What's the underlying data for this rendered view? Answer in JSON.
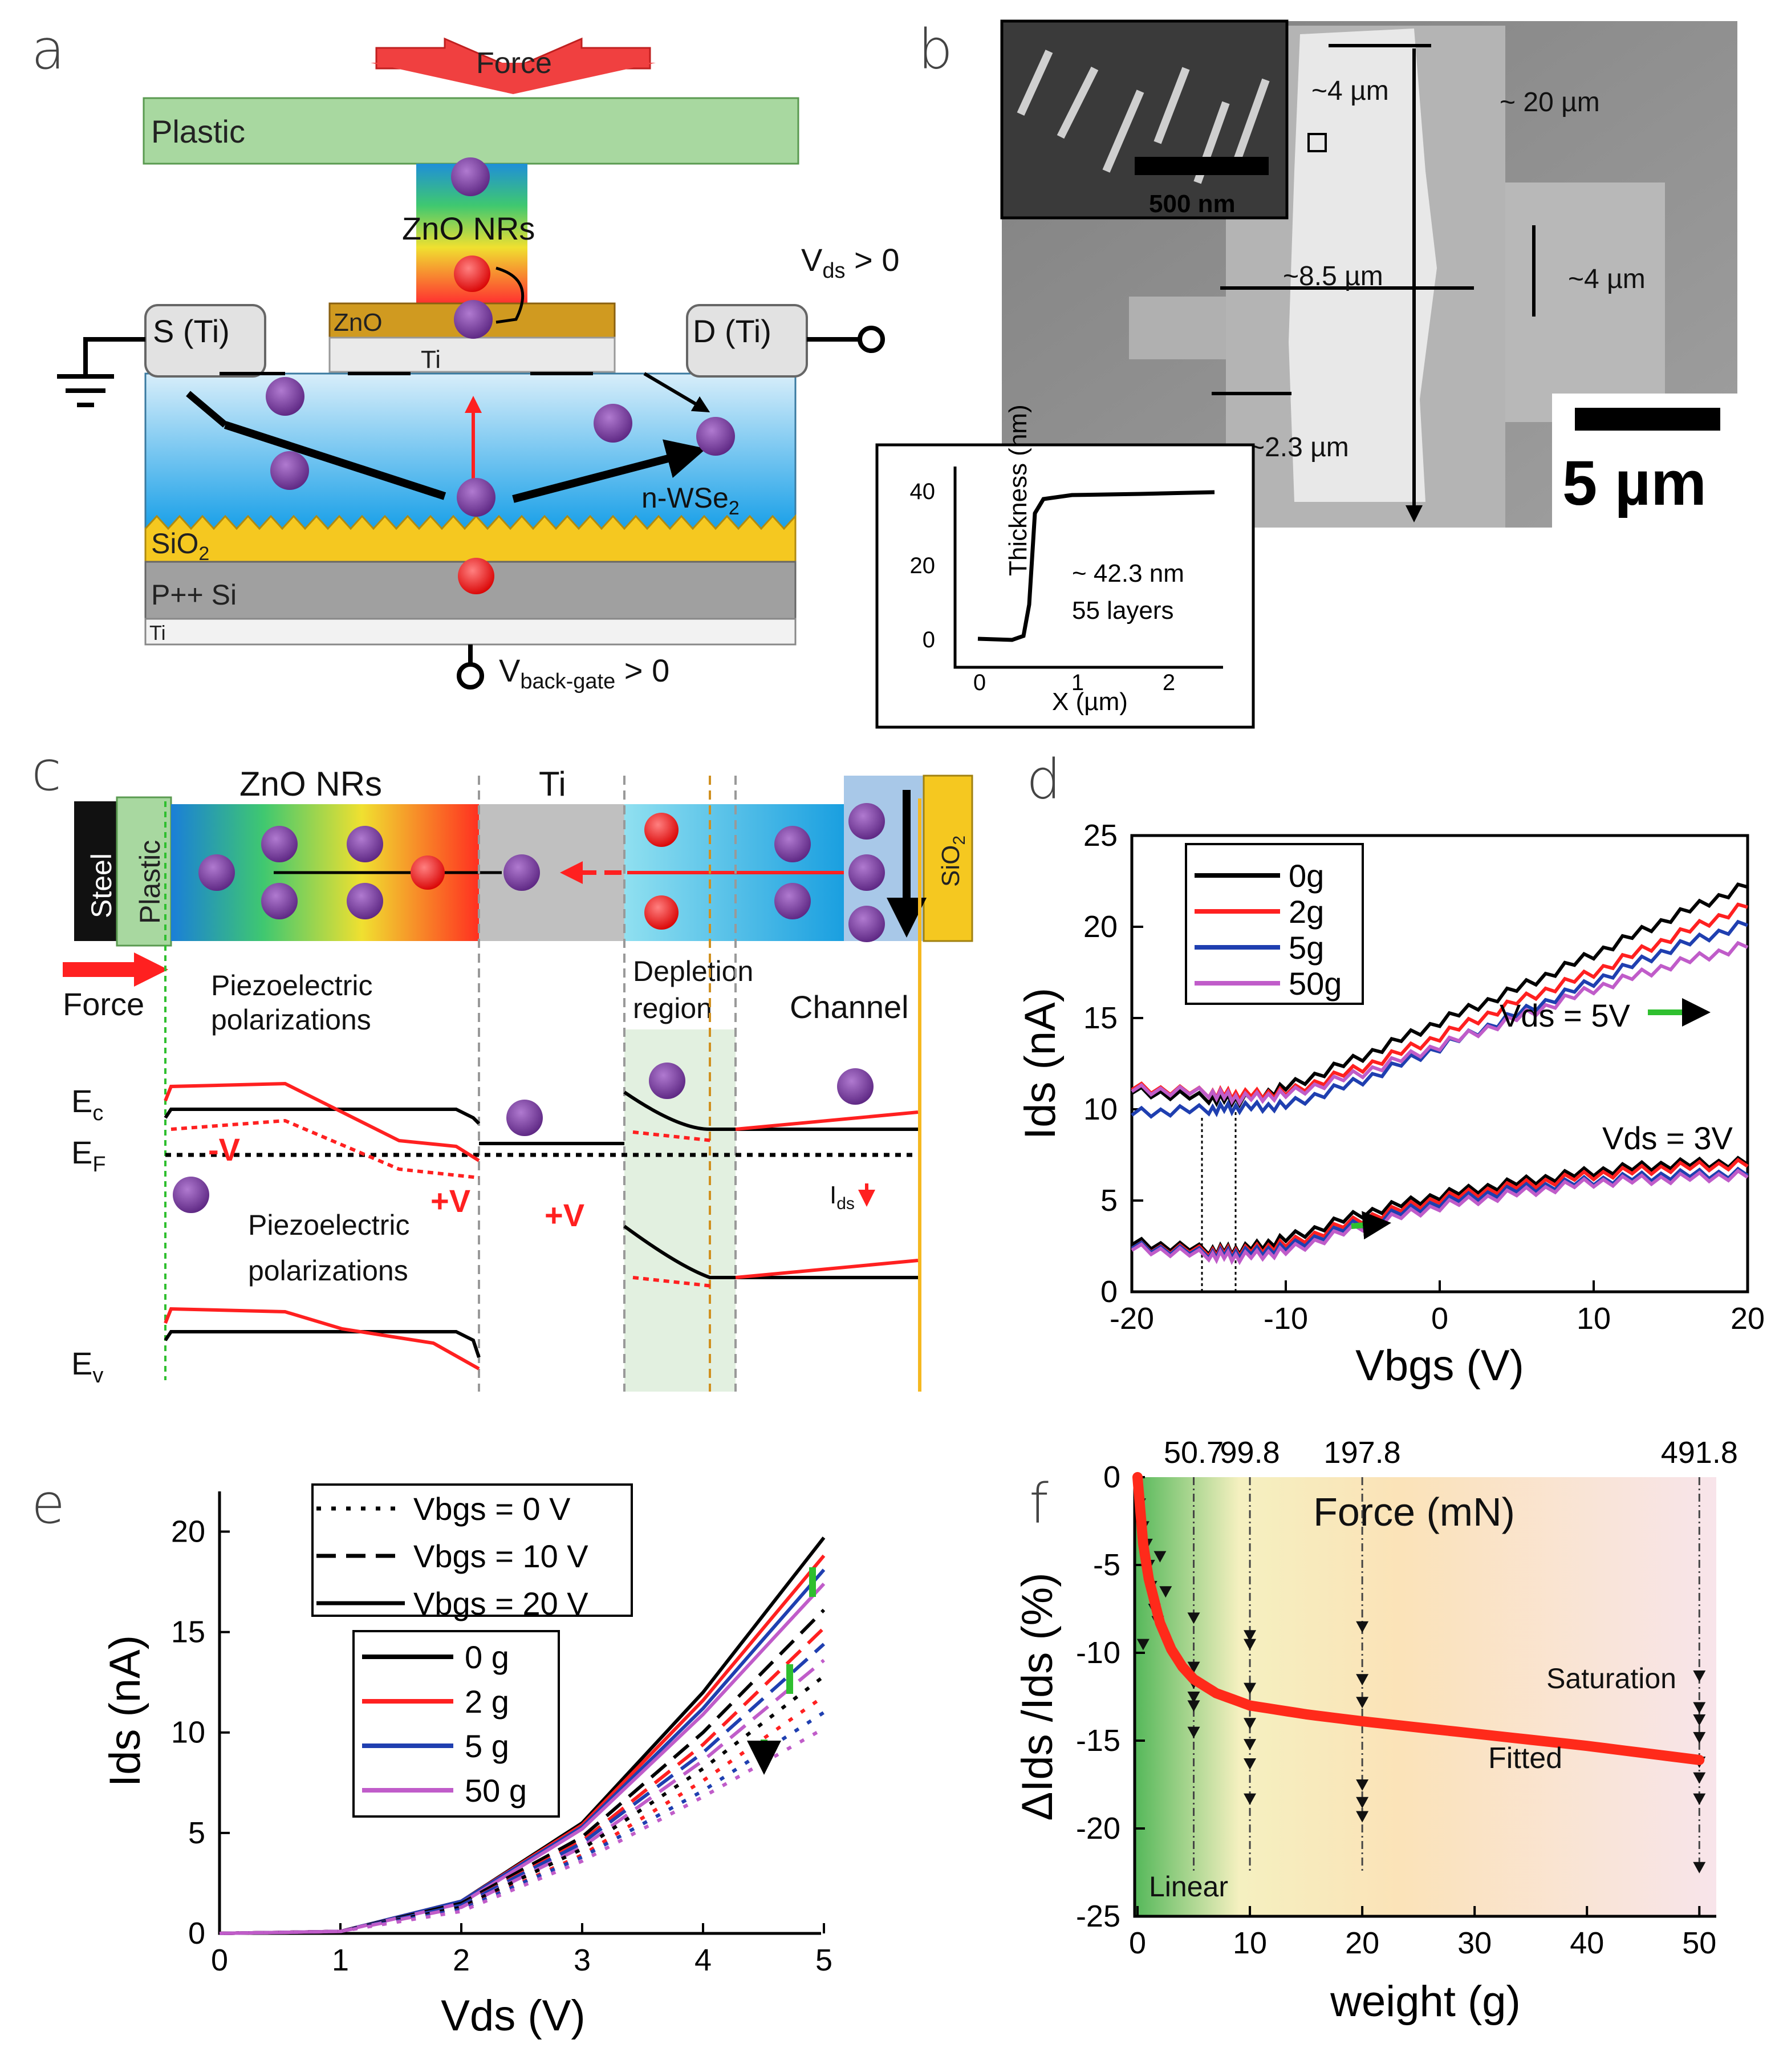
{
  "panel_labels": [
    "a",
    "b",
    "c",
    "d",
    "e",
    "f"
  ],
  "colors": {
    "black": "#000000",
    "red": "#ff2020",
    "blue": "#1f3fb0",
    "magenta": "#c05cc9",
    "green": "#2fbf2f"
  },
  "a": {
    "force": "Force",
    "plastic": "Plastic",
    "zno_nrs": "ZnO NRs",
    "zno": "ZnO",
    "ti_top": "Ti",
    "source": "S (Ti)",
    "drain": "D (Ti)",
    "vds": "V",
    "vds_sub": "ds",
    "vds_tail": " > 0",
    "channel": "n-WSe",
    "channel_sub": "2",
    "sio2": "SiO",
    "sio2_sub": "2",
    "psi": "P++ Si",
    "ti_bottom": "Ti",
    "vbg": "V",
    "vbg_sub": "back-gate",
    "vbg_tail": " > 0",
    "minus": "-",
    "plus": "+"
  },
  "b": {
    "inset_scale": "500 nm",
    "main_scale": "5 µm",
    "dims": [
      "~4 µm",
      "~ 20 µm",
      "~8.5 µm",
      "~4 µm",
      "~2.3 µm"
    ],
    "afm": {
      "ylabel": "Thickness (nm)",
      "xlabel": "X (µm)",
      "yticks": [
        "0",
        "20",
        "40"
      ],
      "xticks": [
        "0",
        "1",
        "2"
      ],
      "note1": "~ 42.3 nm",
      "note2": "55 layers"
    }
  },
  "c": {
    "steel": "Steel",
    "plastic": "Plastic",
    "zno_nrs": "ZnO NRs",
    "ti": "Ti",
    "sio2": "SiO",
    "sio2_sub": "2",
    "force": "Force",
    "piezo": "Piezoelectric",
    "polar": "polarizations",
    "depletion": "Depletion",
    "region": "region",
    "channel": "Channel",
    "ec": "E",
    "ec_sub": "c",
    "ef": "E",
    "ef_sub": "F",
    "ev": "E",
    "ev_sub": "v",
    "minus_v": "-V",
    "plus_v1": "+V",
    "plus_v2": "+V",
    "ids": "I",
    "ids_sub": "ds",
    "minus": "-",
    "plus": "+"
  },
  "d": {
    "ylabel": "Ids (nA)",
    "xlabel": "Vbgs (V)",
    "xticks": [
      "-20",
      "-10",
      "0",
      "10",
      "20"
    ],
    "yticks": [
      "0",
      "5",
      "10",
      "15",
      "20",
      "25"
    ],
    "legend": [
      "0g",
      "2g",
      "5g",
      "50g"
    ],
    "ann1": "Vds = 5V",
    "ann2": "Vds = 3V"
  },
  "e": {
    "ylabel": "Ids (nA)",
    "xlabel": "Vds (V)",
    "xticks": [
      "0",
      "1",
      "2",
      "3",
      "4",
      "5"
    ],
    "yticks": [
      "0",
      "5",
      "10",
      "15",
      "20"
    ],
    "legend_styles": [
      "Vbgs = 0 V",
      "Vbgs = 10 V",
      "Vbgs = 20 V"
    ],
    "legend_weights": [
      "0 g",
      "2 g",
      "5 g",
      "50 g"
    ]
  },
  "f": {
    "ylabel": "ΔIds /Ids (%)",
    "xlabel": "weight (g)",
    "top_label": "Force (mN)",
    "top_ticks": [
      "50.7",
      "99.8",
      "197.8",
      "491.8"
    ],
    "xticks": [
      "0",
      "10",
      "20",
      "30",
      "40",
      "50"
    ],
    "yticks": [
      "0",
      "-5",
      "-10",
      "-15",
      "-20",
      "-25"
    ],
    "linear": "Linear",
    "saturation": "Saturation",
    "fitted": "Fitted"
  },
  "chart_data": [
    {
      "panel": "d",
      "type": "line",
      "title": "",
      "xlabel": "Vbgs (V)",
      "ylabel": "Ids (nA)",
      "xlim": [
        -20,
        20
      ],
      "ylim": [
        0,
        25
      ],
      "x": [
        -20,
        -15,
        -13,
        -10,
        -5,
        0,
        5,
        10,
        15,
        20
      ],
      "series": [
        {
          "name": "0g",
          "group": "Vds = 5V",
          "values": [
            11.0,
            10.6,
            10.5,
            11.2,
            12.9,
            14.8,
            16.6,
            18.5,
            20.5,
            22.3
          ]
        },
        {
          "name": "2g",
          "group": "Vds = 5V",
          "values": [
            11.2,
            10.9,
            10.8,
            10.9,
            12.3,
            14.0,
            15.9,
            17.5,
            19.4,
            21.2
          ]
        },
        {
          "name": "5g",
          "group": "Vds = 5V",
          "values": [
            9.8,
            10.0,
            10.1,
            10.2,
            11.6,
            13.4,
            15.2,
            17.0,
            18.8,
            20.2
          ]
        },
        {
          "name": "50g",
          "group": "Vds = 5V",
          "values": [
            11.1,
            10.9,
            10.6,
            10.8,
            12.0,
            13.5,
            15.0,
            16.6,
            17.9,
            19.0
          ]
        },
        {
          "name": "0g",
          "group": "Vds = 3V",
          "values": [
            2.7,
            2.3,
            2.3,
            2.9,
            4.3,
            5.3,
            6.0,
            6.6,
            7.0,
            7.1
          ]
        },
        {
          "name": "2g",
          "group": "Vds = 3V",
          "values": [
            2.5,
            2.2,
            2.2,
            2.6,
            4.0,
            5.1,
            5.8,
            6.4,
            6.8,
            7.0
          ]
        },
        {
          "name": "5g",
          "group": "Vds = 3V",
          "values": [
            2.5,
            2.1,
            2.1,
            2.4,
            3.8,
            4.9,
            5.6,
            6.1,
            6.4,
            6.5
          ]
        },
        {
          "name": "50g",
          "group": "Vds = 3V",
          "values": [
            2.4,
            2.0,
            1.9,
            2.2,
            3.6,
            4.7,
            5.4,
            6.0,
            6.2,
            6.4
          ]
        }
      ]
    },
    {
      "panel": "e",
      "type": "line",
      "title": "",
      "xlabel": "Vds (V)",
      "ylabel": "Ids (nA)",
      "xlim": [
        0,
        5
      ],
      "ylim": [
        0,
        22
      ],
      "x": [
        0,
        1,
        2,
        3,
        4,
        5
      ],
      "series": [
        {
          "name": "0 g",
          "vbgs": "Vbgs = 20 V",
          "values": [
            0,
            0.1,
            1.6,
            5.5,
            12.0,
            19.7
          ]
        },
        {
          "name": "2 g",
          "vbgs": "Vbgs = 20 V",
          "values": [
            0,
            0.1,
            1.6,
            5.4,
            11.6,
            18.8
          ]
        },
        {
          "name": "5 g",
          "vbgs": "Vbgs = 20 V",
          "values": [
            0,
            0.1,
            1.6,
            5.3,
            11.2,
            18.1
          ]
        },
        {
          "name": "50 g",
          "vbgs": "Vbgs = 20 V",
          "values": [
            0,
            0.1,
            1.5,
            5.2,
            10.9,
            17.4
          ]
        },
        {
          "name": "0 g",
          "vbgs": "Vbgs = 10 V",
          "values": [
            0,
            0.1,
            1.5,
            4.8,
            10.0,
            16.1
          ]
        },
        {
          "name": "2 g",
          "vbgs": "Vbgs = 10 V",
          "values": [
            0,
            0.1,
            1.4,
            4.6,
            9.4,
            15.2
          ]
        },
        {
          "name": "5 g",
          "vbgs": "Vbgs = 10 V",
          "values": [
            0,
            0.1,
            1.4,
            4.5,
            9.0,
            14.4
          ]
        },
        {
          "name": "50 g",
          "vbgs": "Vbgs = 10 V",
          "values": [
            0,
            0.1,
            1.3,
            4.3,
            8.6,
            13.6
          ]
        },
        {
          "name": "0 g",
          "vbgs": "Vbgs = 0 V",
          "values": [
            0,
            0.1,
            1.3,
            4.2,
            8.2,
            12.8
          ]
        },
        {
          "name": "2 g",
          "vbgs": "Vbgs = 0 V",
          "values": [
            0,
            0.1,
            1.2,
            3.9,
            7.6,
            11.8
          ]
        },
        {
          "name": "5 g",
          "vbgs": "Vbgs = 0 V",
          "values": [
            0,
            0.1,
            1.2,
            3.8,
            7.1,
            11.0
          ]
        },
        {
          "name": "50 g",
          "vbgs": "Vbgs = 0 V",
          "values": [
            0,
            0.1,
            1.1,
            3.6,
            6.8,
            10.2
          ]
        }
      ]
    },
    {
      "panel": "f",
      "type": "scatter",
      "title": "",
      "xlabel": "weight (g)",
      "ylabel": "ΔIds /Ids (%)",
      "xlim": [
        0,
        51
      ],
      "ylim": [
        -25,
        0
      ],
      "top_axis": {
        "label": "Force (mN)",
        "values_g": [
          5,
          10,
          20,
          50
        ],
        "labels": [
          "50.7",
          "99.8",
          "197.8",
          "491.8"
        ]
      },
      "points": [
        [
          0.2,
          -1.5
        ],
        [
          0.5,
          -2.8
        ],
        [
          0.8,
          -3.8
        ],
        [
          1,
          -5
        ],
        [
          1.2,
          -6.2
        ],
        [
          1.5,
          -7.5
        ],
        [
          0.5,
          -9.5
        ],
        [
          2,
          -4.5
        ],
        [
          2.5,
          -6.5
        ],
        [
          1.8,
          -8.2
        ],
        [
          5,
          -8
        ],
        [
          5,
          -10.8
        ],
        [
          5,
          -11.7
        ],
        [
          5,
          -12.5
        ],
        [
          5,
          -13
        ],
        [
          5,
          -14.5
        ],
        [
          10,
          -9
        ],
        [
          10,
          -9.5
        ],
        [
          10,
          -12
        ],
        [
          10,
          -14
        ],
        [
          10,
          -15.2
        ],
        [
          10,
          -16.3
        ],
        [
          10,
          -18.3
        ],
        [
          20,
          -8.5
        ],
        [
          20,
          -11.5
        ],
        [
          20,
          -12.8
        ],
        [
          20,
          -17.5
        ],
        [
          20,
          -18.5
        ],
        [
          20,
          -19.3
        ],
        [
          50,
          -11.3
        ],
        [
          50,
          -13.1
        ],
        [
          50,
          -13.8
        ],
        [
          50,
          -14.8
        ],
        [
          50,
          -16.2
        ],
        [
          50,
          -17.1
        ],
        [
          50,
          -18.3
        ],
        [
          50,
          -22.2
        ]
      ],
      "fit": {
        "x": [
          0,
          0.5,
          1,
          2,
          3,
          4,
          5,
          7,
          10,
          15,
          20,
          30,
          40,
          50
        ],
        "y": [
          0,
          -3.8,
          -5.8,
          -8.3,
          -9.8,
          -10.8,
          -11.5,
          -12.3,
          -13,
          -13.5,
          -13.9,
          -14.6,
          -15.3,
          -16.1
        ]
      }
    }
  ]
}
